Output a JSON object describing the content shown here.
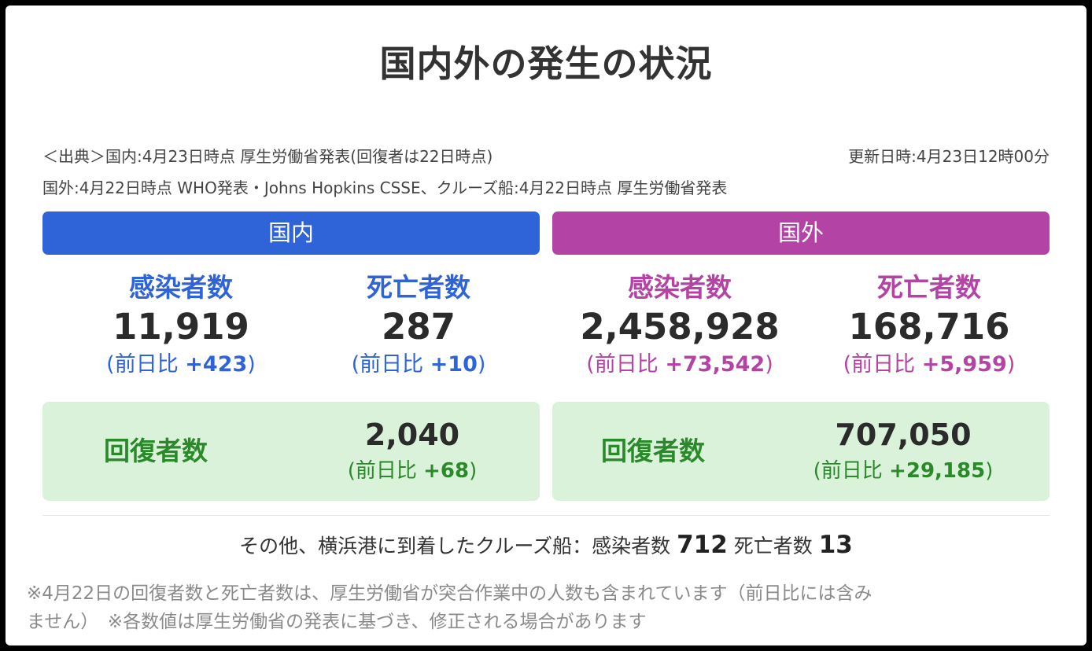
{
  "title": "国内外の発生の状況",
  "source": {
    "line1": "＜出典＞国内:4月23日時点 厚生労働省発表(回復者は22日時点)",
    "updated": "更新日時:4月23日12時00分",
    "line2": "国外:4月22日時点 WHO発表・Johns Hopkins CSSE、クルーズ船:4月22日時点 厚生労働省発表"
  },
  "colors": {
    "domestic": "#2f64d8",
    "international": "#b443a6",
    "recovered": "#2a8a2a",
    "recovered_bg": "#daf2da"
  },
  "domestic": {
    "header": "国内",
    "infected": {
      "label": "感染者数",
      "value": "11,919",
      "diff_prefix": "(前日比 ",
      "diff": "+423",
      "diff_suffix": ")"
    },
    "deaths": {
      "label": "死亡者数",
      "value": "287",
      "diff_prefix": "(前日比 ",
      "diff": "+10",
      "diff_suffix": ")"
    },
    "recovered": {
      "label": "回復者数",
      "value": "2,040",
      "diff_prefix": "(前日比 ",
      "diff": "+68",
      "diff_suffix": ")"
    }
  },
  "international": {
    "header": "国外",
    "infected": {
      "label": "感染者数",
      "value": "2,458,928",
      "diff_prefix": "(前日比 ",
      "diff": "+73,542",
      "diff_suffix": ")"
    },
    "deaths": {
      "label": "死亡者数",
      "value": "168,716",
      "diff_prefix": "(前日比 ",
      "diff": "+5,959",
      "diff_suffix": ")"
    },
    "recovered": {
      "label": "回復者数",
      "value": "707,050",
      "diff_prefix": "(前日比 ",
      "diff": "+29,185",
      "diff_suffix": ")"
    }
  },
  "cruise": {
    "text": "その他、横浜港に到着したクルーズ船：感染者数 ",
    "infected": "712",
    "deaths_label": " 死亡者数 ",
    "deaths": "13"
  },
  "notes": {
    "line1": "※4月22日の回復者数と死亡者数は、厚生労働省が突合作業中の人数も含まれています（前日比には含み",
    "line2": "ません）　※各数値は厚生労働省の発表に基づき、修正される場合があります"
  }
}
